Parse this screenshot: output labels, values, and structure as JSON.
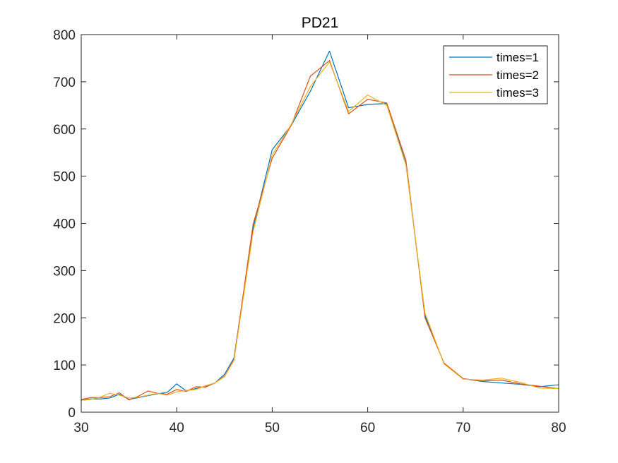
{
  "chart_data": {
    "type": "line",
    "title": "PD21",
    "xlabel": "",
    "ylabel": "",
    "xlim": [
      30,
      80
    ],
    "ylim": [
      0,
      800
    ],
    "xticks": [
      30,
      40,
      50,
      60,
      70,
      80
    ],
    "yticks": [
      0,
      100,
      200,
      300,
      400,
      500,
      600,
      700,
      800
    ],
    "grid": false,
    "legend_position": "top-right",
    "series": [
      {
        "name": "times=1",
        "color": "#0072BD",
        "x": [
          30,
          31,
          32,
          33,
          34,
          35,
          36,
          37,
          38,
          39,
          40,
          41,
          42,
          43,
          44,
          45,
          46,
          48,
          50,
          52,
          54,
          56,
          58,
          60,
          62,
          64,
          66,
          68,
          70,
          72,
          74,
          76,
          78,
          80
        ],
        "y": [
          26,
          28,
          28,
          30,
          38,
          27,
          31,
          35,
          39,
          42,
          60,
          45,
          50,
          55,
          62,
          80,
          115,
          390,
          556,
          608,
          680,
          765,
          645,
          652,
          654,
          527,
          205,
          103,
          71,
          65,
          62,
          59,
          54,
          58
        ]
      },
      {
        "name": "times=2",
        "color": "#D95319",
        "x": [
          30,
          31,
          32,
          33,
          34,
          35,
          36,
          37,
          38,
          39,
          40,
          41,
          42,
          43,
          44,
          45,
          46,
          48,
          50,
          52,
          54,
          56,
          58,
          60,
          62,
          64,
          66,
          68,
          70,
          72,
          74,
          76,
          78,
          80
        ],
        "y": [
          27,
          31,
          31,
          33,
          41,
          26,
          34,
          45,
          40,
          38,
          48,
          44,
          54,
          53,
          62,
          76,
          112,
          398,
          538,
          608,
          712,
          745,
          632,
          663,
          655,
          534,
          200,
          104,
          71,
          66,
          68,
          60,
          55,
          50
        ]
      },
      {
        "name": "times=3",
        "color": "#EDB120",
        "x": [
          30,
          31,
          32,
          33,
          34,
          35,
          36,
          37,
          38,
          39,
          40,
          41,
          42,
          43,
          44,
          45,
          46,
          48,
          50,
          52,
          54,
          56,
          58,
          60,
          62,
          64,
          66,
          68,
          70,
          72,
          74,
          76,
          78,
          80
        ],
        "y": [
          25,
          27,
          32,
          40,
          36,
          30,
          32,
          36,
          40,
          36,
          43,
          46,
          48,
          56,
          62,
          75,
          110,
          382,
          545,
          610,
          690,
          742,
          637,
          672,
          650,
          524,
          210,
          102,
          70,
          68,
          72,
          63,
          51,
          50
        ]
      }
    ]
  }
}
